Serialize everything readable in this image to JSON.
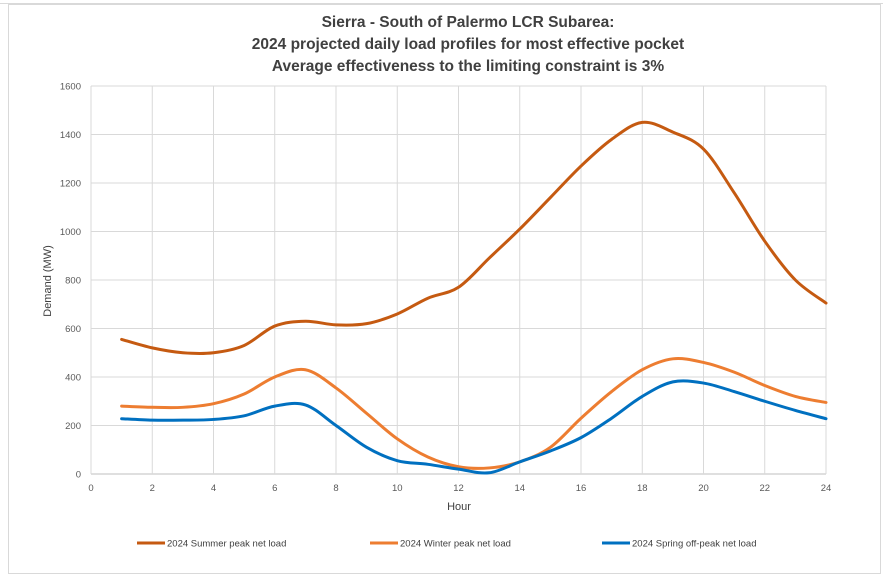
{
  "chart_data": {
    "type": "line",
    "title": [
      "Sierra - South of Palermo LCR Subarea:",
      "2024 projected daily load profiles for most effective pocket",
      "Average effectiveness to the limiting constraint is 3%"
    ],
    "xlabel": "Hour",
    "ylabel": "Demand (MW)",
    "xlim": [
      0,
      24
    ],
    "ylim": [
      0,
      1600
    ],
    "xticks": [
      0,
      2,
      4,
      6,
      8,
      10,
      12,
      14,
      16,
      18,
      20,
      22,
      24
    ],
    "yticks": [
      0,
      200,
      400,
      600,
      800,
      1000,
      1200,
      1400,
      1600
    ],
    "grid": true,
    "legend_position": "bottom",
    "x": [
      1,
      2,
      3,
      4,
      5,
      6,
      7,
      8,
      9,
      10,
      11,
      12,
      13,
      14,
      15,
      16,
      17,
      18,
      19,
      20,
      21,
      22,
      23,
      24
    ],
    "series": [
      {
        "name": "2024 Summer peak net load",
        "color": "#c55a11",
        "values": [
          555,
          520,
          500,
          500,
          530,
          610,
          630,
          615,
          620,
          660,
          725,
          770,
          890,
          1010,
          1140,
          1270,
          1380,
          1450,
          1410,
          1340,
          1160,
          960,
          800,
          705
        ]
      },
      {
        "name": "2024 Winter peak net load",
        "color": "#ed7d31",
        "values": [
          280,
          275,
          275,
          290,
          330,
          400,
          430,
          355,
          250,
          145,
          70,
          30,
          25,
          50,
          110,
          230,
          340,
          430,
          475,
          460,
          420,
          365,
          320,
          295
        ]
      },
      {
        "name": "2024 Spring off-peak net load",
        "color": "#0070c0",
        "values": [
          228,
          222,
          222,
          225,
          240,
          280,
          285,
          200,
          110,
          55,
          40,
          20,
          5,
          50,
          95,
          150,
          230,
          320,
          380,
          375,
          340,
          300,
          262,
          228
        ]
      }
    ]
  }
}
